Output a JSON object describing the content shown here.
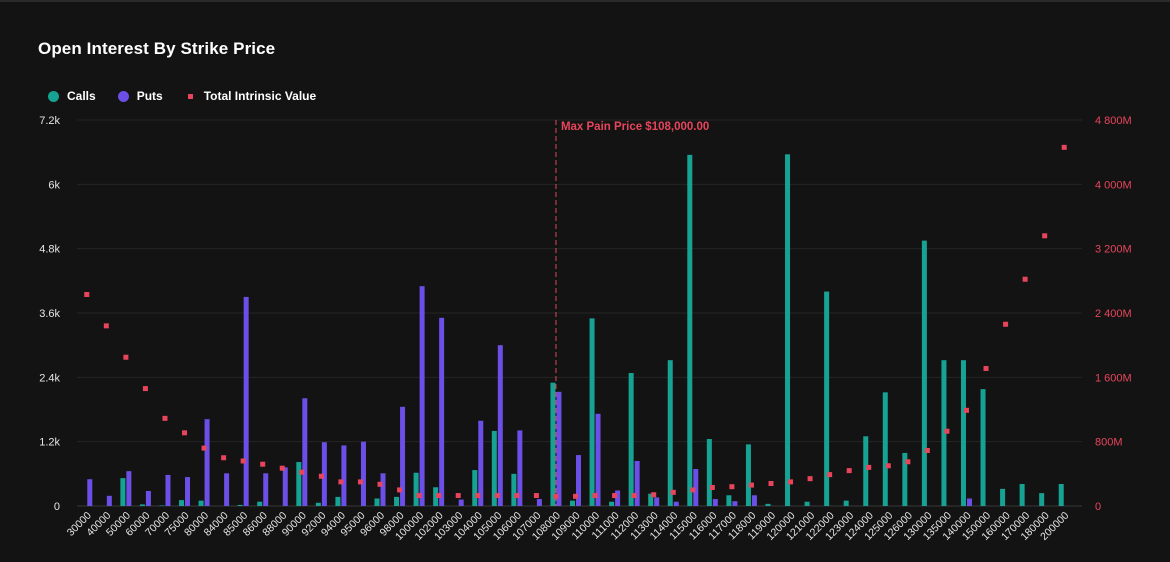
{
  "title": "Open Interest By Strike Price",
  "legend": {
    "calls_label": "Calls",
    "puts_label": "Puts",
    "tiv_label": "Total Intrinsic Value"
  },
  "colors": {
    "calls": "#16a394",
    "puts": "#6c4fe6",
    "tiv": "#e8455c",
    "background": "#131313"
  },
  "chart_data": {
    "type": "bar",
    "title": "Open Interest By Strike Price",
    "categories": [
      "30000",
      "40000",
      "50000",
      "60000",
      "70000",
      "75000",
      "80000",
      "84000",
      "85000",
      "86000",
      "88000",
      "90000",
      "92000",
      "94000",
      "95000",
      "96000",
      "98000",
      "100000",
      "102000",
      "103000",
      "104000",
      "105000",
      "106000",
      "107000",
      "108000",
      "109000",
      "110000",
      "111000",
      "112000",
      "113000",
      "114000",
      "115000",
      "116000",
      "117000",
      "118000",
      "119000",
      "120000",
      "121000",
      "122000",
      "123000",
      "124000",
      "125000",
      "126000",
      "130000",
      "135000",
      "140000",
      "150000",
      "160000",
      "170000",
      "180000",
      "200000"
    ],
    "series": [
      {
        "name": "Calls",
        "axis": "left",
        "values": [
          0,
          0,
          520,
          30,
          10,
          110,
          100,
          0,
          20,
          80,
          0,
          820,
          60,
          170,
          0,
          140,
          170,
          620,
          350,
          0,
          670,
          1400,
          600,
          0,
          2300,
          100,
          3500,
          80,
          2480,
          230,
          2720,
          6550,
          1250,
          200,
          1150,
          40,
          6560,
          80,
          4000,
          100,
          1300,
          2120,
          990,
          4950,
          2720,
          2720,
          2180,
          320,
          410,
          240,
          410
        ]
      },
      {
        "name": "Puts",
        "axis": "left",
        "values": [
          500,
          190,
          650,
          280,
          580,
          540,
          1620,
          610,
          3900,
          610,
          720,
          2010,
          1190,
          1130,
          1200,
          610,
          1850,
          4100,
          3510,
          120,
          1590,
          3000,
          1410,
          130,
          2130,
          950,
          1720,
          290,
          840,
          160,
          80,
          690,
          130,
          90,
          200,
          0,
          0,
          0,
          0,
          0,
          0,
          0,
          0,
          0,
          0,
          140,
          0,
          0,
          0,
          0,
          0
        ]
      },
      {
        "name": "Total Intrinsic Value",
        "axis": "right",
        "type": "scatter",
        "values": [
          2630,
          2240,
          1850,
          1460,
          1090,
          910,
          720,
          600,
          560,
          520,
          470,
          420,
          370,
          300,
          300,
          270,
          200,
          130,
          130,
          130,
          130,
          130,
          130,
          130,
          120,
          120,
          130,
          130,
          130,
          140,
          170,
          200,
          230,
          240,
          260,
          280,
          300,
          340,
          390,
          440,
          480,
          500,
          550,
          690,
          930,
          1190,
          1710,
          2260,
          2820,
          3360,
          4460
        ]
      }
    ],
    "y_left": {
      "min": 0,
      "max": 7200,
      "ticks": [
        0,
        1200,
        2400,
        3600,
        4800,
        6000,
        7200
      ],
      "tick_labels": [
        "0",
        "1.2k",
        "2.4k",
        "3.6k",
        "4.8k",
        "6k",
        "7.2k"
      ]
    },
    "y_right": {
      "min": 0,
      "max": 4800,
      "unit": "M",
      "ticks": [
        0,
        800,
        1600,
        2400,
        3200,
        4000,
        4800
      ],
      "tick_labels": [
        "0",
        "800M",
        "1 600M",
        "2 400M",
        "3 200M",
        "4 000M",
        "4 800M"
      ]
    },
    "annotation": {
      "category": "108000",
      "label": "Max Pain Price $108,000.00"
    },
    "grid": true,
    "legend_position": "top-left"
  }
}
